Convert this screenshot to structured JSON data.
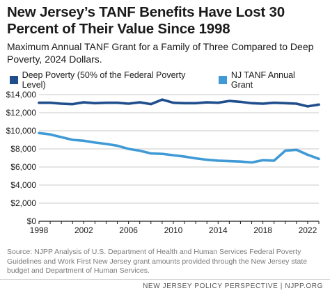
{
  "title": "New Jersey’s TANF Benefits Have Lost 30 Percent of Their Value Since 1998",
  "subtitle": "Maximum Annual TANF Grant for a Family of Three Compared to Deep Poverty, 2024 Dollars.",
  "source": "Source: NJPP Analysis of U.S. Department of Health and Human Services Federal Poverty Guidelines and Work First New Jersey grant amounts provided through the New Jersey state budget and Department of Human Services.",
  "footer": "NEW JERSEY POLICY PERSPECTIVE | NJPP.ORG",
  "chart_data": {
    "type": "line",
    "x": [
      1998,
      1999,
      2000,
      2001,
      2002,
      2003,
      2004,
      2005,
      2006,
      2007,
      2008,
      2009,
      2010,
      2011,
      2012,
      2013,
      2014,
      2015,
      2016,
      2017,
      2018,
      2019,
      2020,
      2021,
      2022,
      2023
    ],
    "series": [
      {
        "name": "Deep Poverty (50% of the Federal Poverty Level)",
        "color": "#1f4e8c",
        "values": [
          13100,
          13100,
          13000,
          12950,
          13150,
          13050,
          13100,
          13100,
          13000,
          13150,
          12950,
          13450,
          13100,
          13050,
          13050,
          13150,
          13100,
          13300,
          13200,
          13050,
          13000,
          13100,
          13050,
          13000,
          12700,
          12900
        ]
      },
      {
        "name": "NJ TANF Annual Grant",
        "color": "#3f9ad6",
        "values": [
          9750,
          9600,
          9300,
          9000,
          8900,
          8700,
          8550,
          8350,
          8000,
          7800,
          7500,
          7450,
          7300,
          7150,
          6950,
          6800,
          6700,
          6650,
          6600,
          6500,
          6750,
          6700,
          7800,
          7900,
          7350,
          6900
        ]
      }
    ],
    "x_ticks": [
      "1998",
      "2002",
      "2006",
      "2010",
      "2014",
      "2018",
      "2022"
    ],
    "y_ticks": [
      "$0",
      "$2,000",
      "$4,000",
      "$6,000",
      "$8,000",
      "$10,000",
      "$12,000",
      "$14,000"
    ],
    "ylim": [
      0,
      14000
    ],
    "xlim": [
      1998,
      2023
    ],
    "grid": "horizontal",
    "legend_position": "top-left"
  }
}
